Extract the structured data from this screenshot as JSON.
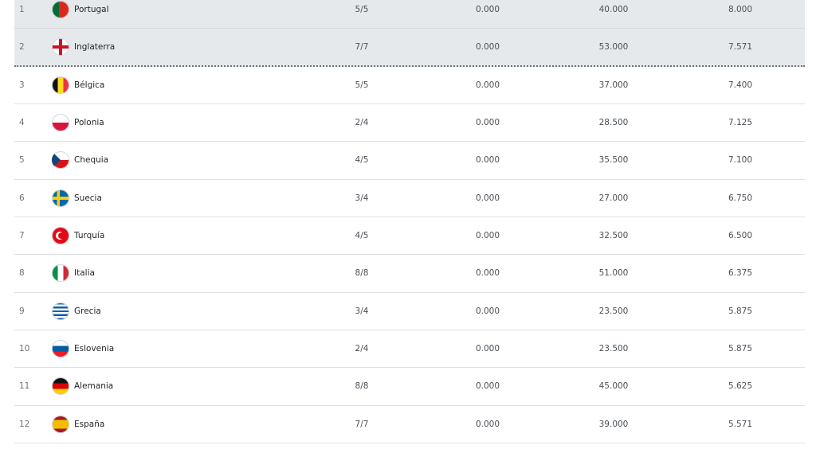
{
  "rows": [
    {
      "rank": "1",
      "country": "Portugal",
      "flag": "portugal-flag",
      "played": "5/5",
      "c2": "0.000",
      "total": "40.000",
      "avg": "8.000",
      "highlight": true
    },
    {
      "rank": "2",
      "country": "Inglaterra",
      "flag": "england-flag",
      "played": "7/7",
      "c2": "0.000",
      "total": "53.000",
      "avg": "7.571",
      "highlight": true
    },
    {
      "rank": "3",
      "country": "Bélgica",
      "flag": "belgium-flag",
      "played": "5/5",
      "c2": "0.000",
      "total": "37.000",
      "avg": "7.400"
    },
    {
      "rank": "4",
      "country": "Polonia",
      "flag": "poland-flag",
      "played": "2/4",
      "c2": "0.000",
      "total": "28.500",
      "avg": "7.125"
    },
    {
      "rank": "5",
      "country": "Chequia",
      "flag": "czechia-flag",
      "played": "4/5",
      "c2": "0.000",
      "total": "35.500",
      "avg": "7.100"
    },
    {
      "rank": "6",
      "country": "Suecia",
      "flag": "sweden-flag",
      "played": "3/4",
      "c2": "0.000",
      "total": "27.000",
      "avg": "6.750"
    },
    {
      "rank": "7",
      "country": "Turquía",
      "flag": "turkey-flag",
      "played": "4/5",
      "c2": "0.000",
      "total": "32.500",
      "avg": "6.500"
    },
    {
      "rank": "8",
      "country": "Italia",
      "flag": "italy-flag",
      "played": "8/8",
      "c2": "0.000",
      "total": "51.000",
      "avg": "6.375"
    },
    {
      "rank": "9",
      "country": "Grecia",
      "flag": "greece-flag",
      "played": "3/4",
      "c2": "0.000",
      "total": "23.500",
      "avg": "5.875"
    },
    {
      "rank": "10",
      "country": "Eslovenia",
      "flag": "slovenia-flag",
      "played": "2/4",
      "c2": "0.000",
      "total": "23.500",
      "avg": "5.875"
    },
    {
      "rank": "11",
      "country": "Alemania",
      "flag": "germany-flag",
      "played": "8/8",
      "c2": "0.000",
      "total": "45.000",
      "avg": "5.625"
    },
    {
      "rank": "12",
      "country": "España",
      "flag": "spain-flag",
      "played": "7/7",
      "c2": "0.000",
      "total": "39.000",
      "avg": "5.571"
    }
  ]
}
